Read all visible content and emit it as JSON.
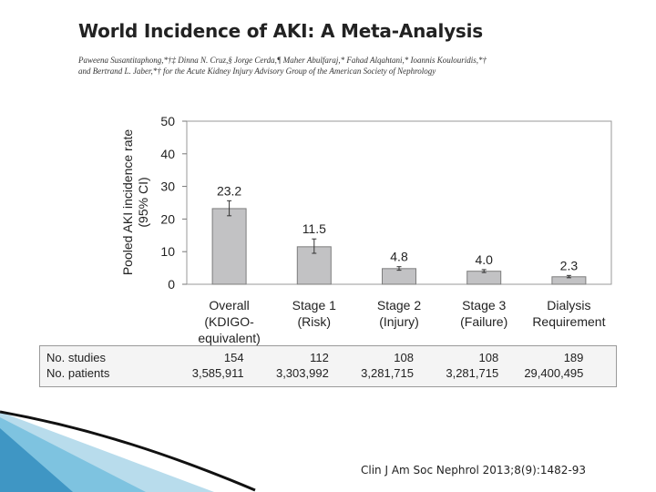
{
  "slide": {
    "title": "World Incidence of AKI: A Meta-Analysis",
    "authors_line1": "Paweena Susantitaphong,*†‡ Dinna N. Cruz,§ Jorge Cerda,¶ Maher Abulfaraj,* Fahad Alqahtani,* Ioannis Koulouridis,*†",
    "authors_line2": "and Bertrand L. Jaber,*† for the Acute Kidney Injury Advisory Group of the American Society of Nephrology",
    "citation": "Clin J Am Soc Nephrol 2013;8(9):1482-93"
  },
  "chart_data": {
    "type": "bar",
    "title": "",
    "ylabel_line1": "Pooled AKI incidence rate",
    "ylabel_line2": "(95% CI)",
    "ylim": [
      0,
      50
    ],
    "yticks": [
      0,
      10,
      20,
      30,
      40,
      50
    ],
    "categories": [
      [
        "Overall",
        "(KDIGO-",
        "equivalent)"
      ],
      [
        "Stage 1",
        "(Risk)"
      ],
      [
        "Stage 2",
        "(Injury)"
      ],
      [
        "Stage 3",
        "(Failure)"
      ],
      [
        "Dialysis",
        "Requirement"
      ]
    ],
    "values": [
      23.2,
      11.5,
      4.8,
      4.0,
      2.3
    ],
    "labels": [
      "23.2",
      "11.5",
      "4.8",
      "4.0",
      "2.3"
    ],
    "ci_low": [
      21.0,
      9.5,
      4.3,
      3.6,
      2.0
    ],
    "ci_high": [
      25.6,
      13.9,
      5.4,
      4.5,
      2.7
    ],
    "bar_color": "#c2c2c4",
    "bar_border": "#7d7d7d"
  },
  "table": {
    "rows": [
      {
        "label": "No. studies",
        "values": [
          "154",
          "112",
          "108",
          "108",
          "189"
        ]
      },
      {
        "label": "No. patients",
        "values": [
          "3,585,911",
          "3,303,992",
          "3,281,715",
          "3,281,715",
          "29,400,495"
        ]
      }
    ]
  },
  "colors": {
    "accent_light": "#b8dcec",
    "accent_mid": "#6ab4d6",
    "accent_dark": "#2a7fb0"
  }
}
